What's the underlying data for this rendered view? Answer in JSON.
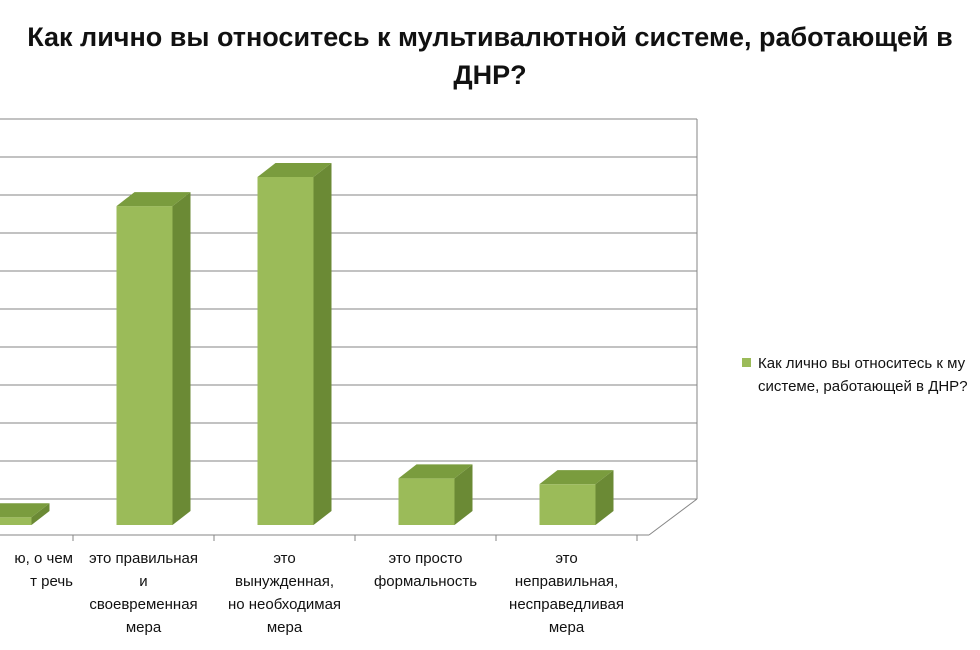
{
  "chart_data": {
    "type": "bar",
    "title": "Как лично вы относитесь к мультивалютной системе, работающей в ДНР?",
    "categories": [
      "ю, о чем\nт речь",
      "это правильная\nи\nсвоевременная\nмера",
      "это\nвынужденная,\nно необходимая\nмера",
      "это просто\nформальность",
      "это\nнеправильная,\nнесправедливая\nмера"
    ],
    "series": [
      {
        "name": "Как лично вы относитесь к му\nсистеме, работающей в ДНР?",
        "values": [
          2,
          82,
          89.5,
          12,
          10.5
        ]
      }
    ],
    "ylim": [
      0,
      100
    ],
    "y_gridlines": 11,
    "grid": true,
    "three_d": true,
    "legend_position": "right",
    "colors": {
      "bar_front": "#9bbb59",
      "bar_side": "#6b8a35",
      "bar_top": "#7a9c3e",
      "grid": "#868686"
    }
  }
}
